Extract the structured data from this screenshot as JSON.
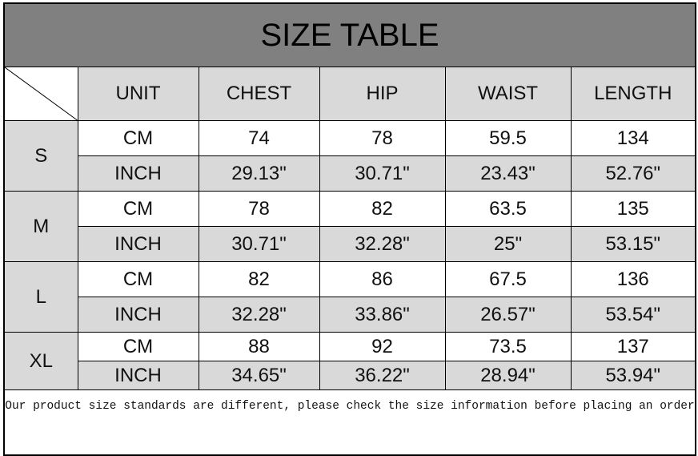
{
  "title": "SIZE TABLE",
  "headers": [
    "UNIT",
    "CHEST",
    "HIP",
    "WAIST",
    "LENGTH"
  ],
  "sizes": [
    {
      "size": "S",
      "cm": {
        "unit": "CM",
        "values": [
          "74",
          "78",
          "59.5",
          "134"
        ]
      },
      "inch": {
        "unit": "INCH",
        "values": [
          "29.13\"",
          "30.71\"",
          "23.43\"",
          "52.76\""
        ]
      }
    },
    {
      "size": "M",
      "cm": {
        "unit": "CM",
        "values": [
          "78",
          "82",
          "63.5",
          "135"
        ]
      },
      "inch": {
        "unit": "INCH",
        "values": [
          "30.71\"",
          "32.28\"",
          "25\"",
          "53.15\""
        ]
      }
    },
    {
      "size": "L",
      "cm": {
        "unit": "CM",
        "values": [
          "82",
          "86",
          "67.5",
          "136"
        ]
      },
      "inch": {
        "unit": "INCH",
        "values": [
          "32.28\"",
          "33.86\"",
          "26.57\"",
          "53.54\""
        ]
      }
    },
    {
      "size": "XL",
      "cm": {
        "unit": "CM",
        "values": [
          "88",
          "92",
          "73.5",
          "137"
        ]
      },
      "inch": {
        "unit": "INCH",
        "values": [
          "34.65\"",
          "36.22\"",
          "28.94\"",
          "53.94\""
        ]
      }
    }
  ],
  "note": "Our product size standards are different, please check the size information before placing an order",
  "colors": {
    "title_bg": "#808080",
    "gray_cell": "#d9d9d9",
    "white_cell": "#ffffff"
  }
}
